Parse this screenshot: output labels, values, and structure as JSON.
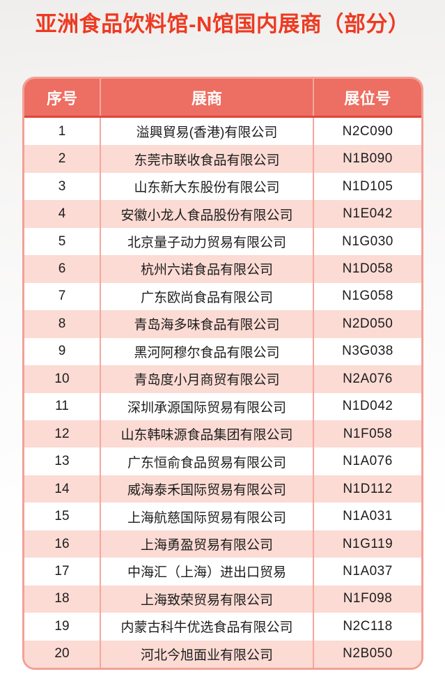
{
  "page": {
    "title": "亚洲食品饮料馆-N馆国内展商（部分）"
  },
  "colors": {
    "title_red": "#ed3a22",
    "header_bg": "#ed6e62",
    "header_divider": "#df4639",
    "row_pink": "#fbdbd4",
    "grid_line": "#f5a79d",
    "table_border": "#f2a096",
    "text_dark": "#1c1c1c"
  },
  "table": {
    "columns": {
      "no": "序号",
      "exhibitor": "展商",
      "booth": "展位号"
    },
    "rows": [
      {
        "no": "1",
        "exhibitor": "溢興貿易(香港)有限公司",
        "booth": "N2C090"
      },
      {
        "no": "2",
        "exhibitor": "东莞市联收食品有限公司",
        "booth": "N1B090"
      },
      {
        "no": "3",
        "exhibitor": "山东新大东股份有限公司",
        "booth": "N1D105"
      },
      {
        "no": "4",
        "exhibitor": "安徽小龙人食品股份有限公司",
        "booth": "N1E042"
      },
      {
        "no": "5",
        "exhibitor": "北京量子动力贸易有限公司",
        "booth": "N1G030"
      },
      {
        "no": "6",
        "exhibitor": "杭州六诺食品有限公司",
        "booth": "N1D058"
      },
      {
        "no": "7",
        "exhibitor": "广东欧尚食品有限公司",
        "booth": "N1G058"
      },
      {
        "no": "8",
        "exhibitor": "青岛海多味食品有限公司",
        "booth": "N2D050"
      },
      {
        "no": "9",
        "exhibitor": "黑河阿穆尔食品有限公司",
        "booth": "N3G038"
      },
      {
        "no": "10",
        "exhibitor": "青岛度小月商贸有限公司",
        "booth": "N2A076"
      },
      {
        "no": "11",
        "exhibitor": "深圳承源国际贸易有限公司",
        "booth": "N1D042"
      },
      {
        "no": "12",
        "exhibitor": "山东韩味源食品集团有限公司",
        "booth": "N1F058"
      },
      {
        "no": "13",
        "exhibitor": "广东恒俞食品贸易有限公司",
        "booth": "N1A076"
      },
      {
        "no": "14",
        "exhibitor": "威海泰禾国际贸易有限公司",
        "booth": "N1D112"
      },
      {
        "no": "15",
        "exhibitor": "上海航慈国际贸易有限公司",
        "booth": "N1A031"
      },
      {
        "no": "16",
        "exhibitor": "上海勇盈贸易有限公司",
        "booth": "N1G119"
      },
      {
        "no": "17",
        "exhibitor": "中海汇（上海）进出口贸易",
        "booth": "N1A037"
      },
      {
        "no": "18",
        "exhibitor": "上海致荣贸易有限公司",
        "booth": "N1F098"
      },
      {
        "no": "19",
        "exhibitor": "内蒙古科牛优选食品有限公司",
        "booth": "N2C118"
      },
      {
        "no": "20",
        "exhibitor": "河北今旭面业有限公司",
        "booth": "N2B050"
      }
    ]
  }
}
